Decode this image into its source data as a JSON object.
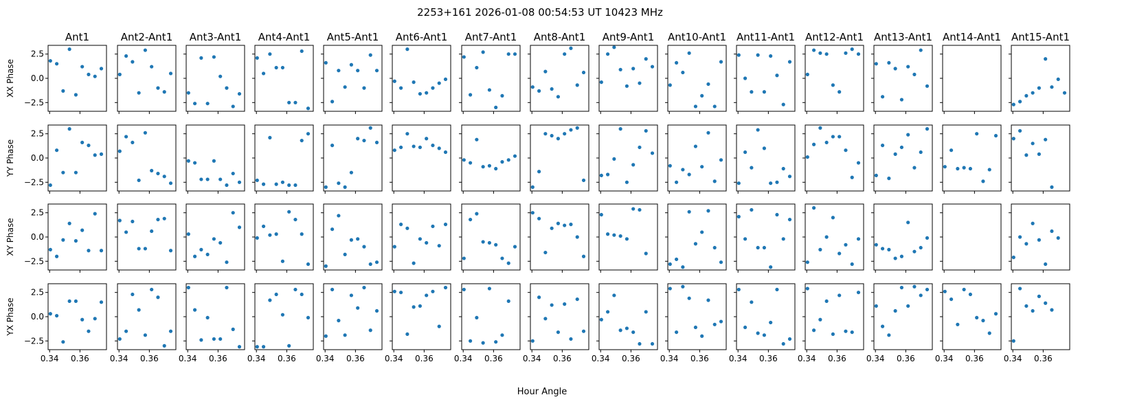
{
  "chart_data": {
    "type": "scatter",
    "title": "2253+161  2026-01-08 00:54:53 UT  10423 MHz",
    "xlabel": "Hour Angle",
    "xlim": [
      0.339,
      0.3775
    ],
    "ylim": [
      -3.4,
      3.4
    ],
    "xticks": [
      0.34,
      0.36
    ],
    "xtick_labels": [
      "0.34",
      "0.36"
    ],
    "yticks": [
      2.5,
      0.0,
      -2.5
    ],
    "ytick_labels": [
      "2.5",
      "0.0",
      "−2.5"
    ],
    "marker_color": "#1f77b4",
    "x": [
      0.3405,
      0.3447,
      0.3489,
      0.3531,
      0.3573,
      0.3615,
      0.3657,
      0.3699,
      0.3741
    ],
    "columns": [
      "Ant1",
      "Ant2-Ant1",
      "Ant3-Ant1",
      "Ant4-Ant1",
      "Ant5-Ant1",
      "Ant6-Ant1",
      "Ant7-Ant1",
      "Ant8-Ant1",
      "Ant9-Ant1",
      "Ant10-Ant1",
      "Ant11-Ant1",
      "Ant12-Ant1",
      "Ant13-Ant1",
      "Ant14-Ant1",
      "Ant15-Ant1"
    ],
    "rows": [
      "XX Phase",
      "YY Phase",
      "XY Phase",
      "YX Phase"
    ],
    "panels": {
      "XX Phase": [
        [
          1.8,
          1.5,
          -1.3,
          3.0,
          -1.7,
          1.2,
          0.4,
          0.2,
          1.0
        ],
        [
          0.4,
          2.3,
          1.7,
          -1.5,
          2.9,
          1.2,
          -1.0,
          -1.4,
          0.5
        ],
        [
          -1.5,
          -2.6,
          2.1,
          -2.6,
          2.2,
          0.2,
          -1.0,
          -2.9,
          -1.6
        ],
        [
          2.1,
          0.5,
          2.5,
          1.1,
          1.1,
          -2.5,
          -2.5,
          2.8,
          -3.1
        ],
        [
          1.6,
          -2.4,
          0.8,
          -0.9,
          1.4,
          0.8,
          -1.0,
          2.4,
          0.8
        ],
        [
          -0.3,
          -1.0,
          3.0,
          -0.4,
          -1.6,
          -1.5,
          -1.0,
          -0.5,
          -0.1
        ],
        [
          2.2,
          -1.7,
          1.1,
          2.7,
          -1.2,
          -3.0,
          -1.8,
          2.5,
          2.5
        ],
        [
          -0.9,
          -1.3,
          0.7,
          -1.1,
          -1.9,
          2.5,
          3.1,
          -0.7,
          0.6
        ],
        [
          -0.4,
          2.5,
          3.2,
          0.9,
          -0.8,
          1.0,
          -0.5,
          2.0,
          1.2
        ],
        [
          -0.7,
          1.6,
          0.6,
          2.6,
          -2.9,
          -1.8,
          -0.6,
          -2.9,
          1.7
        ],
        [
          2.4,
          0.0,
          -1.4,
          2.4,
          -1.4,
          2.3,
          0.3,
          -2.7,
          1.7
        ],
        [
          0.4,
          2.9,
          2.6,
          2.5,
          -0.7,
          -1.4,
          2.6,
          3.0,
          2.5
        ],
        [
          1.5,
          -1.9,
          1.6,
          1.0,
          -2.2,
          1.2,
          0.4,
          2.9,
          -0.8
        ],
        [],
        [
          -2.7,
          -2.4,
          -1.8,
          -1.5,
          -1.0,
          2.0,
          -0.9,
          -0.1,
          -1.5
        ]
      ],
      "YY Phase": [
        [
          -2.8,
          0.8,
          -1.5,
          3.0,
          -1.5,
          1.6,
          1.3,
          0.3,
          0.4
        ],
        [
          0.7,
          2.2,
          1.6,
          -2.3,
          2.6,
          -1.3,
          -1.6,
          -1.9,
          -2.6
        ],
        [
          -0.3,
          -0.5,
          -2.2,
          -2.2,
          -0.3,
          -2.2,
          -2.8,
          -1.6,
          -2.5
        ],
        [
          -2.3,
          -2.7,
          2.1,
          -2.7,
          -2.5,
          -2.8,
          -2.8,
          1.8,
          2.5
        ],
        [
          -3.0,
          1.3,
          -2.6,
          -3.0,
          -1.5,
          2.0,
          1.8,
          3.1,
          1.6
        ],
        [
          0.8,
          1.1,
          2.5,
          1.2,
          1.1,
          2.0,
          1.3,
          1.0,
          0.6
        ],
        [
          -0.2,
          -0.5,
          1.9,
          -0.9,
          -0.8,
          -1.1,
          -0.4,
          -0.2,
          0.2
        ],
        [
          -3.0,
          -1.4,
          2.5,
          2.3,
          2.0,
          2.5,
          2.9,
          3.1,
          -2.3
        ],
        [
          -1.8,
          -1.7,
          -0.1,
          3.0,
          -2.5,
          -0.7,
          1.1,
          2.8,
          0.5
        ],
        [
          -0.8,
          -2.5,
          -1.2,
          -1.7,
          1.2,
          -0.9,
          2.6,
          -2.4,
          -0.2
        ],
        [
          -2.6,
          0.6,
          -1.0,
          2.9,
          1.0,
          -2.6,
          -2.5,
          -1.1,
          -1.9
        ],
        [
          0.1,
          1.4,
          3.1,
          1.6,
          2.2,
          2.2,
          0.8,
          -2.0,
          -0.5
        ],
        [
          -1.8,
          1.3,
          -2.1,
          0.4,
          1.1,
          2.4,
          -1.0,
          0.6,
          3.0
        ],
        [
          -0.9,
          0.8,
          -1.1,
          -1.0,
          -1.1,
          2.5,
          -2.4,
          -1.2,
          2.3
        ],
        [
          2.0,
          2.8,
          0.3,
          1.5,
          0.4,
          1.9,
          -3.0
        ]
      ],
      "XY Phase": [
        [
          -1.3,
          -2.0,
          -0.3,
          1.4,
          -0.4,
          0.7,
          -1.4,
          2.4,
          -1.4
        ],
        [
          1.7,
          0.5,
          1.6,
          -1.2,
          -1.2,
          0.6,
          1.8,
          1.9,
          -1.4
        ],
        [
          0.3,
          -2.0,
          -1.3,
          -1.8,
          -0.2,
          -0.6,
          -2.6,
          2.5,
          1.0
        ],
        [
          -0.1,
          1.1,
          0.2,
          0.3,
          -2.5,
          2.6,
          1.8,
          0.3,
          -2.8
        ],
        [
          -3.0,
          0.8,
          2.2,
          -1.8,
          -0.3,
          -0.2,
          -1.0,
          -2.8,
          -2.6
        ],
        [
          -1.0,
          1.3,
          0.9,
          -2.7,
          -0.2,
          -0.6,
          1.1,
          -0.9,
          1.3
        ],
        [
          -2.2,
          1.8,
          2.4,
          -0.5,
          -0.6,
          -0.8,
          -2.2,
          -2.7,
          -1.0
        ],
        [
          2.5,
          1.9,
          -1.6,
          0.9,
          1.4,
          1.2,
          1.3,
          0.0,
          -2.0
        ],
        [
          2.3,
          0.3,
          0.2,
          0.1,
          -0.2,
          2.9,
          2.8,
          -1.7
        ],
        [
          -2.8,
          -2.3,
          -3.1,
          2.6,
          -0.7,
          0.5,
          2.7,
          -1.1,
          -2.6
        ],
        [
          2.1,
          -0.2,
          2.8,
          -1.1,
          -1.1,
          -3.1,
          2.3,
          -0.2,
          1.8
        ],
        [
          -2.6,
          3.0,
          -1.3,
          0.0,
          2.0,
          -1.7,
          -0.8,
          -2.8,
          -0.2
        ],
        [
          -0.8,
          -1.2,
          -1.3,
          -2.2,
          -2.0,
          1.5,
          -1.5,
          -1.1,
          -0.1
        ],
        [],
        [
          -2.1,
          0.0,
          -0.7,
          1.4,
          -0.3,
          -2.8,
          0.6,
          -0.1
        ]
      ],
      "YX Phase": [
        [
          0.3,
          0.1,
          -2.6,
          1.6,
          1.6,
          -0.3,
          -1.5,
          -0.2,
          1.5
        ],
        [
          -2.3,
          -1.5,
          2.3,
          0.7,
          -1.9,
          2.8,
          2.0,
          -3.0,
          -1.5
        ],
        [
          3.0,
          0.7,
          -2.4,
          -0.1,
          -2.3,
          -2.3,
          3.0,
          -1.3,
          -3.1
        ],
        [
          -3.1,
          -3.1,
          1.7,
          2.3,
          0.2,
          -3.0,
          2.8,
          2.3,
          -0.1
        ],
        [
          -2.0,
          2.8,
          -0.4,
          -1.9,
          2.2,
          0.9,
          3.0,
          -1.4,
          0.6
        ],
        [
          2.6,
          2.5,
          -1.8,
          1.0,
          1.1,
          2.2,
          2.6,
          -1.0,
          3.0
        ],
        [
          2.8,
          -2.5,
          -0.1,
          -2.7,
          2.9,
          -2.6,
          -1.9,
          1.6
        ],
        [
          -2.5,
          2.0,
          -0.2,
          1.2,
          -1.6,
          1.3,
          -2.3,
          1.8,
          -1.5
        ],
        [
          -0.3,
          0.5,
          2.2,
          -1.4,
          -1.2,
          -1.6,
          -2.8,
          0.5,
          -2.8
        ],
        [
          2.9,
          -1.6,
          3.1,
          1.9,
          -1.1,
          -2.0,
          1.7,
          -0.8,
          -0.5
        ],
        [
          2.8,
          -1.1,
          1.5,
          -1.7,
          -1.9,
          -0.6,
          2.8,
          -2.8,
          -2.3
        ],
        [
          2.9,
          -1.4,
          -0.3,
          1.6,
          -1.8,
          2.2,
          -1.5,
          -1.6,
          2.5
        ],
        [
          1.1,
          -1.0,
          -1.9,
          0.6,
          3.0,
          1.1,
          3.1,
          2.2,
          2.8
        ],
        [
          2.6,
          1.8,
          -0.8,
          2.8,
          2.3,
          -0.1,
          -0.4,
          -1.7,
          0.3
        ],
        [
          -2.5,
          2.9,
          1.1,
          0.6,
          2.1,
          1.4,
          0.7
        ]
      ]
    }
  }
}
